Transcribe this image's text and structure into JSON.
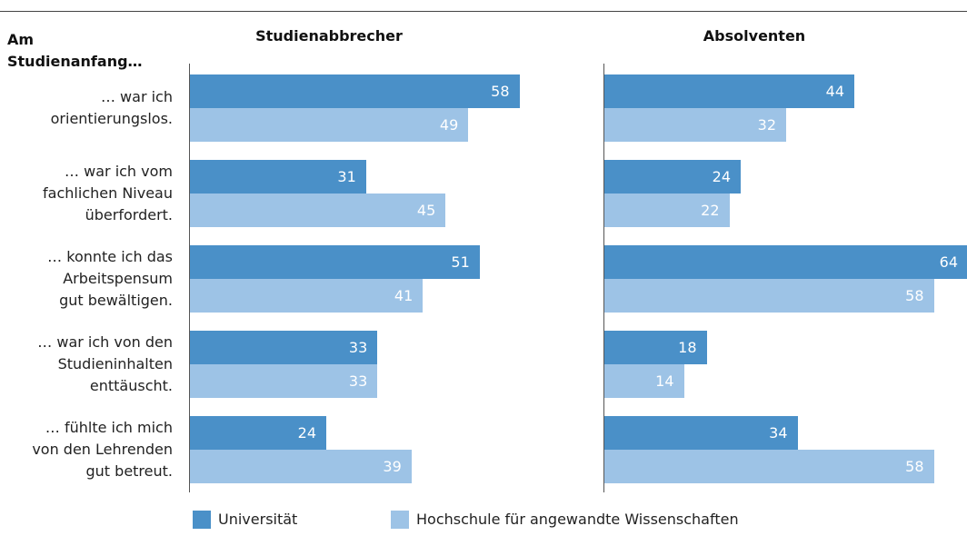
{
  "chart_data": [
    {
      "type": "bar",
      "orientation": "horizontal",
      "title": "Studienabbrecher",
      "category_heading": "Am\nStudienanfang…",
      "categories": [
        "… war ich\norientierungslos.",
        "… war ich vom\nfachlichen Niveau\nüberfordert.",
        "… konnte ich das\nArbeitspensum\ngut bewältigen.",
        "… war ich von den\nStudieninhalten\nenttäuscht.",
        "… fühlte ich mich\nvon den Lehrenden\ngut betreut."
      ],
      "series": [
        {
          "name": "Universität",
          "color": "#4a90c8",
          "values": [
            58,
            31,
            51,
            33,
            24
          ]
        },
        {
          "name": "Hochschule für angewandte Wissenschaften",
          "color": "#9dc3e6",
          "values": [
            49,
            45,
            41,
            33,
            39
          ]
        }
      ]
    },
    {
      "type": "bar",
      "orientation": "horizontal",
      "title": "Absolventen",
      "series": [
        {
          "color": "#4a90c8",
          "values": [
            44,
            24,
            64,
            18,
            34
          ]
        },
        {
          "color": "#9dc3e6",
          "values": [
            32,
            22,
            58,
            14,
            58
          ]
        }
      ]
    }
  ]
}
